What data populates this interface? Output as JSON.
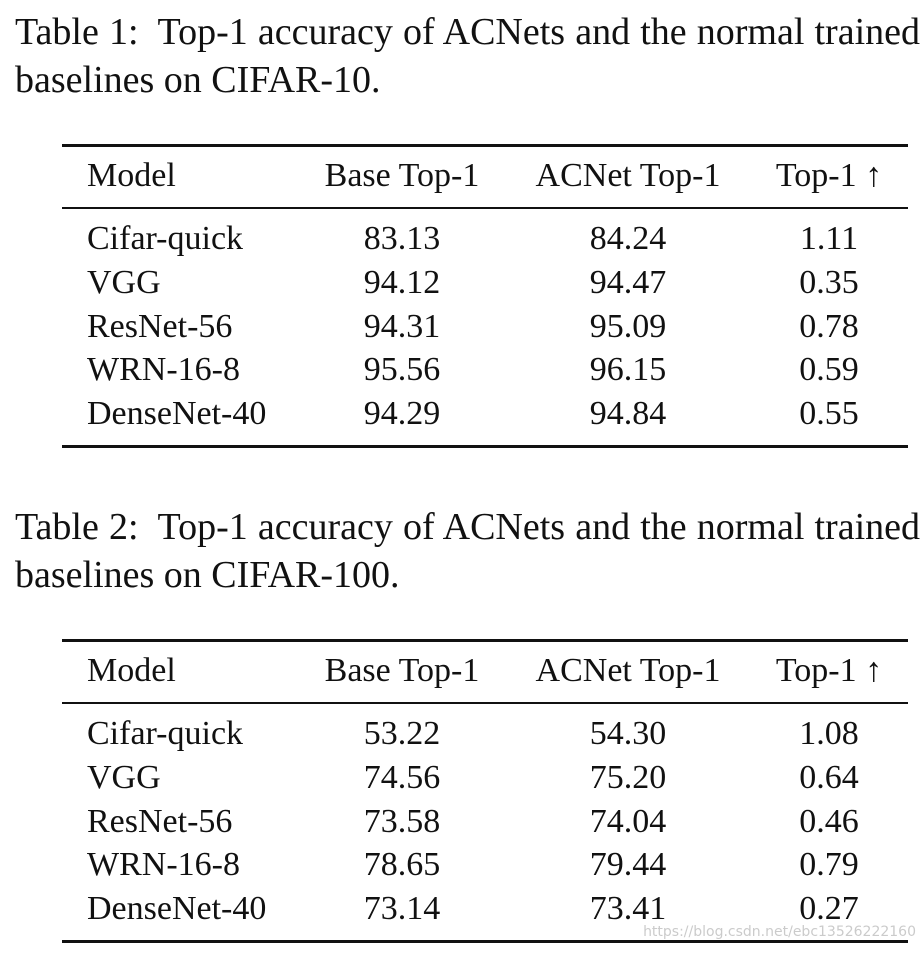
{
  "tables": [
    {
      "label": "Table 1:",
      "caption": "Top-1 accuracy of ACNets and the normal trained baselines on CIFAR-10.",
      "header": [
        "Model",
        "Base Top-1",
        "ACNet Top-1",
        "Top-1 ↑"
      ],
      "rows": [
        [
          "Cifar-quick",
          "83.13",
          "84.24",
          "1.11"
        ],
        [
          "VGG",
          "94.12",
          "94.47",
          "0.35"
        ],
        [
          "ResNet-56",
          "94.31",
          "95.09",
          "0.78"
        ],
        [
          "WRN-16-8",
          "95.56",
          "96.15",
          "0.59"
        ],
        [
          "DenseNet-40",
          "94.29",
          "94.84",
          "0.55"
        ]
      ]
    },
    {
      "label": "Table 2:",
      "caption": "Top-1 accuracy of ACNets and the normal trained baselines on CIFAR-100.",
      "header": [
        "Model",
        "Base Top-1",
        "ACNet Top-1",
        "Top-1 ↑"
      ],
      "rows": [
        [
          "Cifar-quick",
          "53.22",
          "54.30",
          "1.08"
        ],
        [
          "VGG",
          "74.56",
          "75.20",
          "0.64"
        ],
        [
          "ResNet-56",
          "73.58",
          "74.04",
          "0.46"
        ],
        [
          "WRN-16-8",
          "78.65",
          "79.44",
          "0.79"
        ],
        [
          "DenseNet-40",
          "73.14",
          "73.41",
          "0.27"
        ]
      ]
    }
  ],
  "watermark": "https://blog.csdn.net/ebc13526222160"
}
